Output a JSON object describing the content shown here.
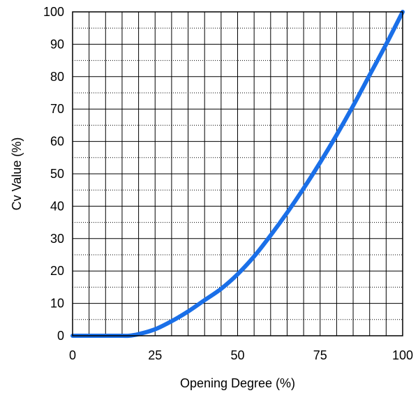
{
  "chart_data": {
    "type": "line",
    "title": "",
    "xlabel": "Opening Degree (%)",
    "ylabel": "Cv Value (%)",
    "xlim": [
      0,
      100
    ],
    "ylim": [
      0,
      100
    ],
    "x_ticks": [
      0,
      25,
      50,
      75,
      100
    ],
    "y_ticks": [
      0,
      10,
      20,
      30,
      40,
      50,
      60,
      70,
      80,
      90,
      100
    ],
    "x_tick_labels": [
      "0",
      "25",
      "50",
      "75",
      "100"
    ],
    "y_tick_labels": [
      "0",
      "10",
      "20",
      "30",
      "40",
      "50",
      "60",
      "70",
      "80",
      "90",
      "100"
    ],
    "grid": {
      "vertical_major_step": 5,
      "horizontal_major_step": 10,
      "horizontal_minor_step": 5,
      "horizontal_minor_style": "dotted"
    },
    "legend": "none",
    "series": [
      {
        "color": "#1a6fe8",
        "x": [
          0,
          5,
          10,
          15,
          17,
          20,
          25,
          30,
          35,
          40,
          45,
          50,
          55,
          60,
          65,
          70,
          75,
          80,
          85,
          90,
          95,
          100
        ],
        "y": [
          0,
          0,
          0,
          0,
          0,
          0.5,
          2,
          4.5,
          7.5,
          11,
          14.5,
          19,
          24.5,
          31,
          38,
          45.5,
          53.5,
          62,
          71,
          80.5,
          90,
          100
        ]
      }
    ]
  }
}
